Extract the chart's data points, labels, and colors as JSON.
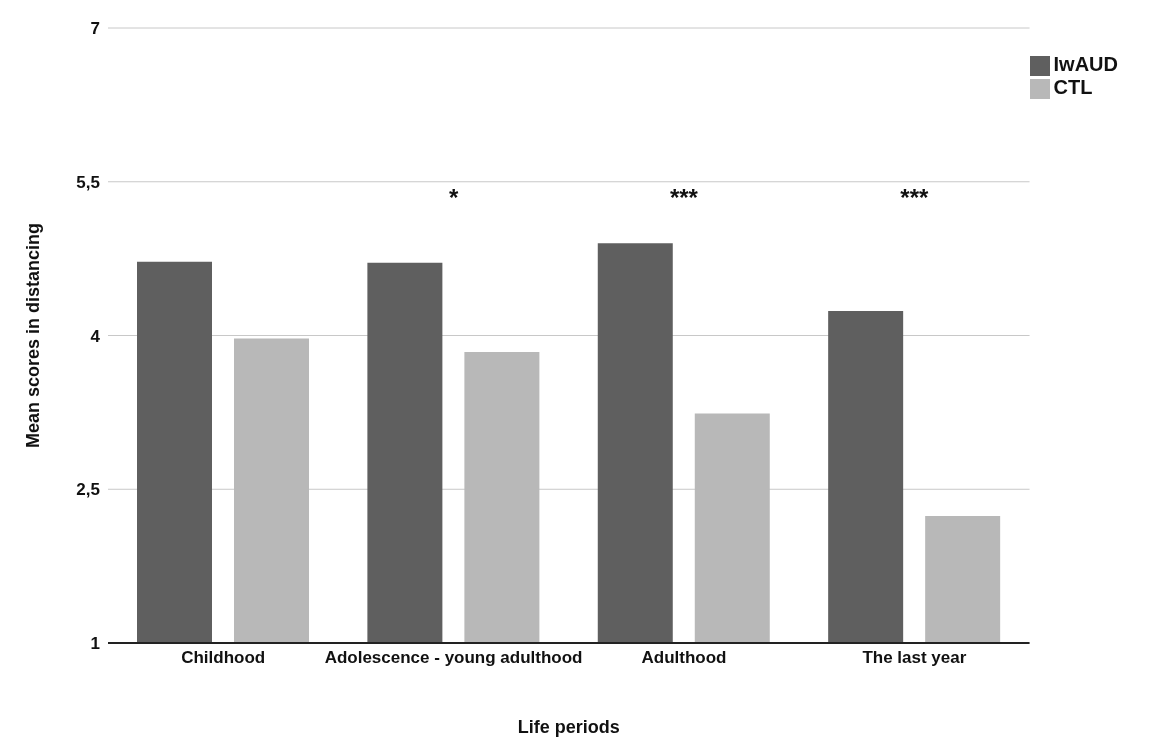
{
  "chart_data": {
    "type": "bar",
    "xlabel": "Life periods",
    "ylabel": "Mean scores in distancing",
    "categories": [
      "Childhood",
      "Adolescence - young adulthood",
      "Adulthood",
      "The last year"
    ],
    "series": [
      {
        "name": "IwAUD",
        "color": "#5f5f5f",
        "values": [
          4.72,
          4.71,
          4.9,
          4.24
        ]
      },
      {
        "name": "CTL",
        "color": "#b8b8b8",
        "values": [
          3.97,
          3.84,
          3.24,
          2.24
        ]
      }
    ],
    "ylim": [
      1,
      7
    ],
    "yticks": [
      1,
      {
        "value": 2.5,
        "label": "2,5"
      },
      4,
      {
        "value": 5.5,
        "label": "5,5"
      },
      7
    ],
    "grid": "y",
    "legend": "top right",
    "annotations": [
      "*",
      "***",
      "***"
    ]
  }
}
